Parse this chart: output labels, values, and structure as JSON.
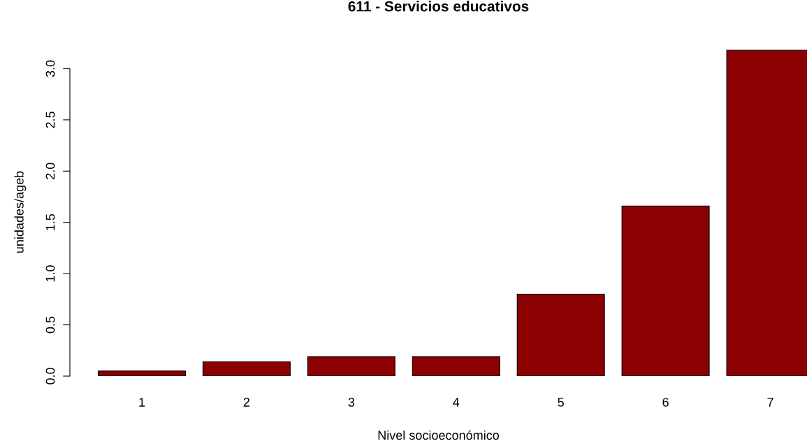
{
  "chart_data": {
    "type": "bar",
    "title": "611 - Servicios educativos",
    "xlabel": "Nivel socioeconómico",
    "ylabel": "unidades/ageb",
    "categories": [
      "1",
      "2",
      "3",
      "4",
      "5",
      "6",
      "7"
    ],
    "values": [
      0.05,
      0.14,
      0.19,
      0.19,
      0.8,
      1.66,
      3.18
    ],
    "color": "#8b0000",
    "ylim": [
      0,
      3.2
    ],
    "yticks": [
      {
        "value": 0,
        "label": "0.0"
      },
      {
        "value": 0.5,
        "label": "0.5"
      },
      {
        "value": 1,
        "label": "1.0"
      },
      {
        "value": 1.5,
        "label": "1.5"
      },
      {
        "value": 2,
        "label": "2.0"
      },
      {
        "value": 2.5,
        "label": "2.5"
      },
      {
        "value": 3,
        "label": "3.0"
      }
    ],
    "grid": false
  }
}
